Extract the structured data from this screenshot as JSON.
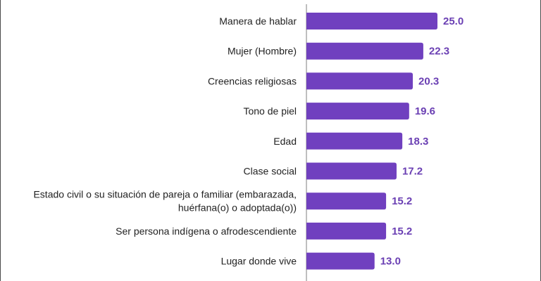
{
  "chart_data": {
    "type": "bar",
    "orientation": "horizontal",
    "categories": [
      [
        "Manera de hablar"
      ],
      [
        "Mujer (Hombre)"
      ],
      [
        "Creencias religiosas"
      ],
      [
        "Tono de piel"
      ],
      [
        "Edad"
      ],
      [
        "Clase social"
      ],
      [
        "Estado civil o su situación de pareja o familiar (embarazada,",
        "huérfana(o) o adoptada(o))"
      ],
      [
        "Ser persona indígena o afrodescendiente"
      ],
      [
        "Lugar donde vive"
      ]
    ],
    "values": [
      25.0,
      22.3,
      20.3,
      19.6,
      18.3,
      17.2,
      15.2,
      15.2,
      13.0
    ],
    "value_labels": [
      "25.0",
      "22.3",
      "20.3",
      "19.6",
      "18.3",
      "17.2",
      "15.2",
      "15.2",
      "13.0"
    ],
    "xlim": [
      0,
      25
    ],
    "grid": false,
    "colors": {
      "bar": "#7040bf",
      "value_label": "#6a3fb3",
      "axis": "#7f7f7f",
      "category_label": "#222222"
    }
  }
}
